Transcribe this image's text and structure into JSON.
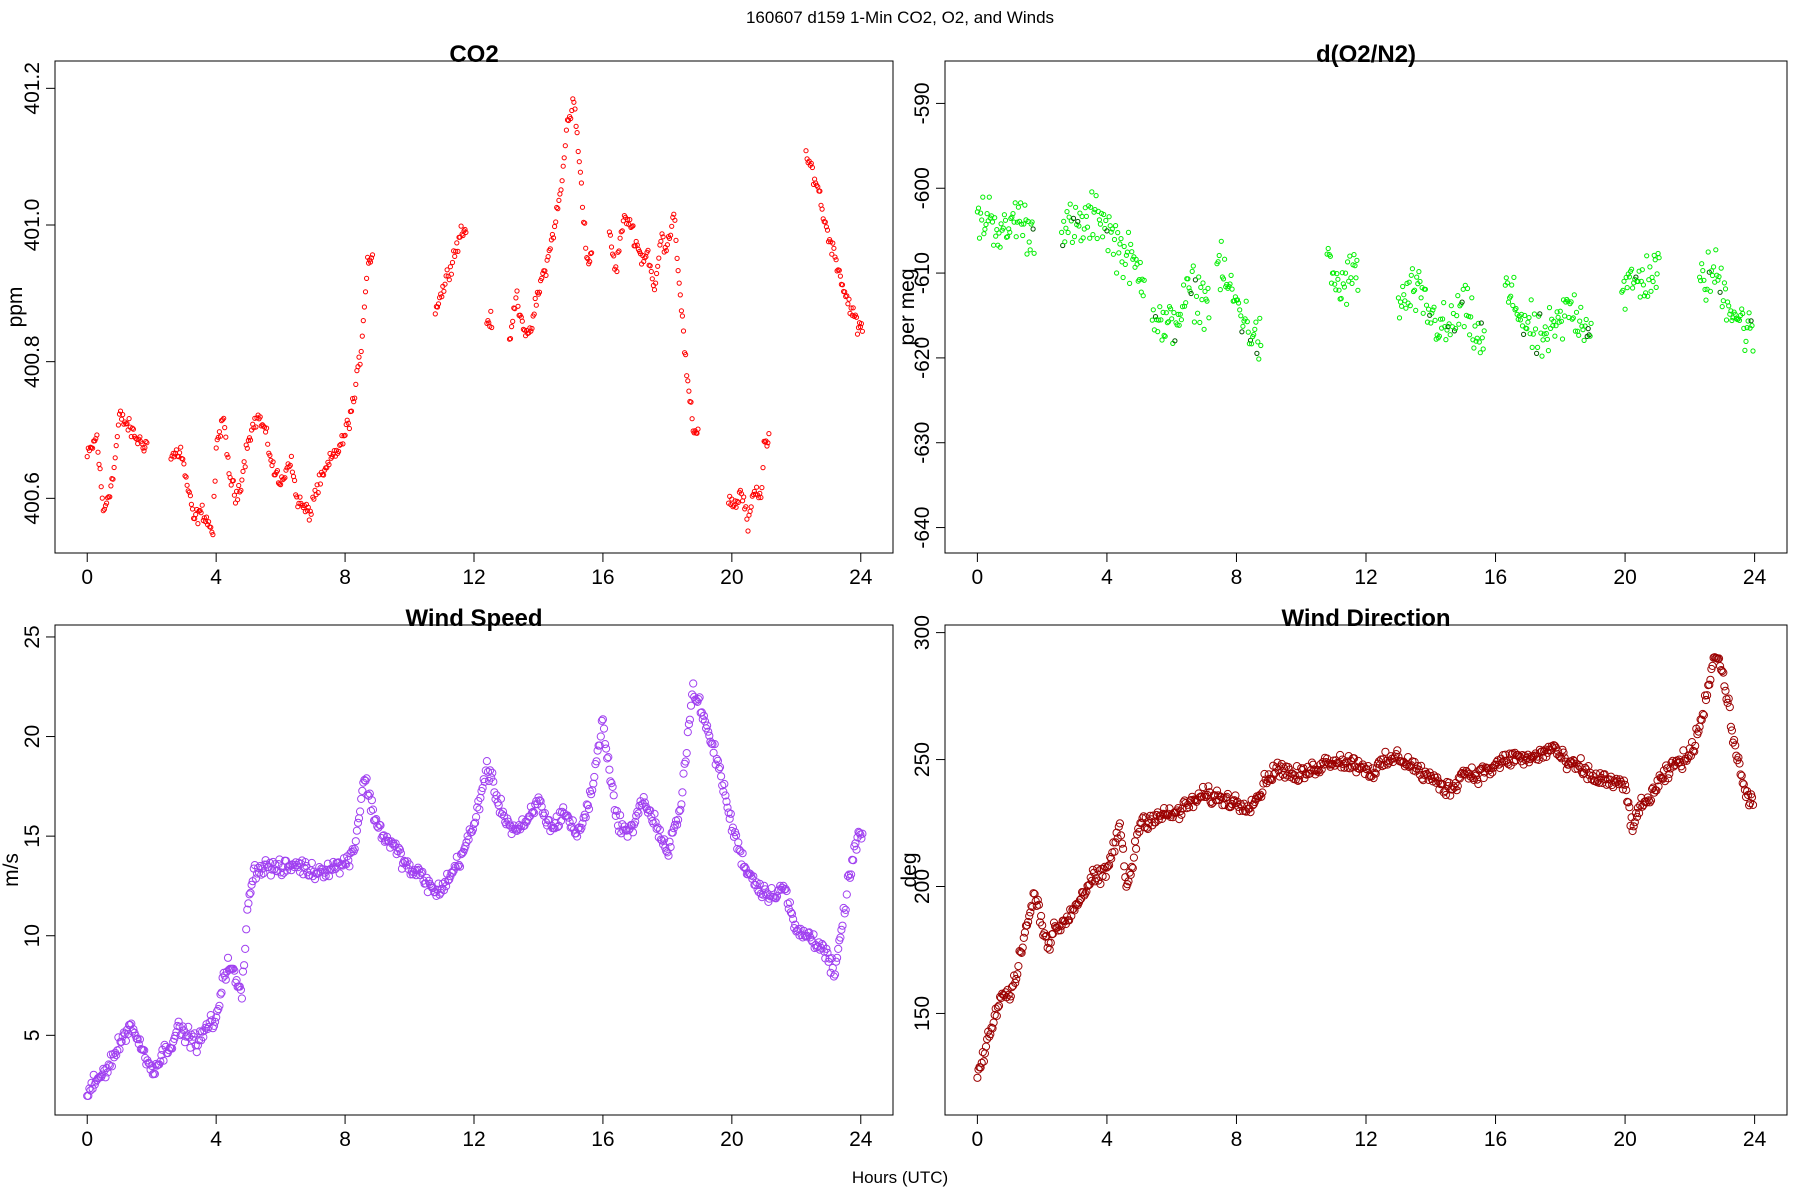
{
  "figure": {
    "suptitle": "160607   d159   1-Min CO2, O2, and Winds",
    "xlabel": "Hours (UTC)"
  },
  "chart_data": [
    {
      "id": "co2",
      "type": "scatter",
      "title": "CO2",
      "ylabel": "ppm",
      "xlabel": "",
      "xlim": [
        -1,
        25
      ],
      "ylim": [
        400.52,
        401.24
      ],
      "xticks": [
        0,
        4,
        8,
        12,
        16,
        20,
        24
      ],
      "yticks": [
        400.6,
        400.8,
        401.0,
        401.2
      ],
      "ytick_labels": [
        "400.6",
        "400.8",
        "401.0",
        "401.2"
      ],
      "color": "#ff0000",
      "marker_size": "small",
      "segments": [
        {
          "x": [
            0,
            0.3,
            0.5,
            0.8,
            1.0,
            1.2,
            1.5,
            1.7
          ],
          "y": [
            400.66,
            400.69,
            400.58,
            400.63,
            400.72,
            400.71,
            400.69,
            400.68
          ]
        },
        {
          "x": [
            2.6,
            2.9,
            3.1,
            3.3,
            3.6,
            3.9,
            4.0,
            4.2,
            4.4,
            4.6,
            4.8,
            5.0,
            5.3,
            5.5,
            5.8,
            6.0,
            6.3,
            6.5,
            6.8
          ],
          "y": [
            400.66,
            400.67,
            400.62,
            400.57,
            400.58,
            400.55,
            400.67,
            400.72,
            400.64,
            400.6,
            400.63,
            400.69,
            400.72,
            400.7,
            400.64,
            400.62,
            400.66,
            400.6,
            400.58
          ]
        },
        {
          "x": [
            7.0,
            7.3,
            7.6,
            7.9,
            8.1,
            8.3,
            8.5,
            8.7
          ],
          "y": [
            400.6,
            400.63,
            400.66,
            400.68,
            400.71,
            400.75,
            400.82,
            400.95
          ]
        },
        {
          "x": [
            10.8,
            11.0,
            11.2,
            11.4,
            11.6
          ],
          "y": [
            400.88,
            400.9,
            400.93,
            400.96,
            400.99
          ]
        },
        {
          "x": [
            12.4
          ],
          "y": [
            400.86
          ]
        },
        {
          "x": [
            13.1,
            13.3,
            13.5,
            13.7,
            13.9,
            14.1,
            14.3,
            14.5,
            14.7,
            14.9,
            15.1,
            15.3,
            15.5
          ],
          "y": [
            400.82,
            400.9,
            400.86,
            400.83,
            400.88,
            400.92,
            400.95,
            401.0,
            401.05,
            401.15,
            401.18,
            401.08,
            400.95
          ]
        },
        {
          "x": [
            16.2,
            16.4,
            16.6,
            16.8,
            17.0,
            17.2,
            17.4,
            17.6,
            17.8,
            18.0,
            18.2,
            18.4,
            18.6,
            18.8
          ],
          "y": [
            400.99,
            400.93,
            401.0,
            401.01,
            400.98,
            400.95,
            400.96,
            400.9,
            400.98,
            400.97,
            401.02,
            400.9,
            400.78,
            400.7
          ]
        },
        {
          "x": [
            19.9,
            20.1,
            20.3,
            20.5,
            20.7,
            20.9,
            21.0
          ],
          "y": [
            400.6,
            400.59,
            400.61,
            400.56,
            400.61,
            400.6,
            400.68
          ]
        },
        {
          "x": [
            22.3,
            22.5,
            22.7,
            22.9,
            23.1,
            23.3,
            23.5,
            23.7,
            23.9
          ],
          "y": [
            401.1,
            401.08,
            401.05,
            401.0,
            400.97,
            400.94,
            400.9,
            400.88,
            400.85
          ]
        }
      ]
    },
    {
      "id": "o2n2",
      "type": "scatter",
      "title": "d(O2/N2)",
      "ylabel": "per meg",
      "xlabel": "",
      "xlim": [
        -1,
        25
      ],
      "ylim": [
        -643,
        -585
      ],
      "xticks": [
        0,
        4,
        8,
        12,
        16,
        20,
        24
      ],
      "yticks": [
        -640,
        -630,
        -620,
        -610,
        -600,
        -590
      ],
      "ytick_labels": [
        "-640",
        "-630",
        "-620",
        "-610",
        "-600",
        "-590"
      ],
      "color": "#00ee00",
      "marker_size": "small",
      "segments": [
        {
          "x": [
            0,
            0.4,
            0.8,
            1.2,
            1.6
          ],
          "y": [
            -604,
            -603,
            -606,
            -603,
            -605
          ]
        },
        {
          "x": [
            2.6,
            3.0,
            3.4,
            3.8,
            4.2,
            4.6,
            5.0
          ],
          "y": [
            -604,
            -605,
            -604,
            -603,
            -606,
            -608,
            -610
          ]
        },
        {
          "x": [
            5.4,
            5.8,
            6.2,
            6.6,
            7.0
          ],
          "y": [
            -614,
            -617,
            -615,
            -612,
            -613
          ]
        },
        {
          "x": [
            7.4,
            7.8,
            8.2,
            8.6
          ],
          "y": [
            -609,
            -612,
            -615,
            -618
          ]
        },
        {
          "x": [
            10.8,
            11.2,
            11.6
          ],
          "y": [
            -609,
            -612,
            -610
          ]
        },
        {
          "x": [
            13.0,
            13.5,
            14.0,
            14.5,
            15.0,
            15.5
          ],
          "y": [
            -614,
            -612,
            -615,
            -617,
            -614,
            -618
          ]
        },
        {
          "x": [
            16.3,
            16.8,
            17.3,
            17.8,
            18.3,
            18.8
          ],
          "y": [
            -612,
            -615,
            -618,
            -617,
            -614,
            -616
          ]
        },
        {
          "x": [
            19.9,
            20.4,
            20.9
          ],
          "y": [
            -612,
            -611,
            -610
          ]
        },
        {
          "x": [
            22.3,
            22.8,
            23.3,
            23.8
          ],
          "y": [
            -611,
            -610,
            -614,
            -617
          ]
        }
      ]
    },
    {
      "id": "wspd",
      "type": "scatter",
      "title": "Wind Speed",
      "ylabel": "m/s",
      "xlabel": "",
      "xlim": [
        -1,
        25
      ],
      "ylim": [
        1,
        25.6
      ],
      "xticks": [
        0,
        4,
        8,
        12,
        16,
        20,
        24
      ],
      "yticks": [
        5,
        10,
        15,
        20,
        25
      ],
      "ytick_labels": [
        "5",
        "10",
        "15",
        "20",
        "25"
      ],
      "color": "#a040f0",
      "marker_size": "large",
      "series": {
        "x": [
          0,
          0.2,
          0.4,
          0.6,
          0.8,
          1.0,
          1.2,
          1.4,
          1.6,
          1.8,
          2.0,
          2.2,
          2.4,
          2.6,
          2.8,
          3.0,
          3.2,
          3.4,
          3.6,
          3.8,
          4.0,
          4.2,
          4.4,
          4.6,
          4.8,
          5.0,
          5.2,
          5.6,
          6.0,
          6.5,
          7.0,
          7.5,
          8.0,
          8.3,
          8.6,
          8.9,
          9.2,
          9.6,
          10.0,
          10.4,
          10.8,
          11.2,
          11.6,
          12.0,
          12.4,
          12.8,
          13.2,
          13.6,
          14.0,
          14.4,
          14.8,
          15.2,
          15.6,
          16.0,
          16.4,
          16.8,
          17.2,
          17.6,
          18.0,
          18.4,
          18.8,
          19.2,
          19.6,
          20.0,
          20.4,
          20.8,
          21.2,
          21.6,
          22.0,
          22.4,
          22.8,
          23.2,
          23.6,
          23.9
        ],
        "y": [
          2.0,
          2.5,
          2.9,
          3.4,
          3.9,
          4.5,
          5.2,
          5.5,
          4.6,
          4.0,
          3.3,
          3.6,
          4.2,
          4.6,
          5.3,
          5.1,
          4.9,
          4.6,
          5.0,
          5.7,
          5.5,
          7.9,
          8.6,
          7.8,
          7.0,
          12.0,
          13.3,
          13.5,
          13.3,
          13.6,
          13.2,
          13.4,
          13.6,
          14.5,
          18.0,
          16.0,
          15.0,
          14.3,
          13.3,
          13.0,
          12.1,
          12.8,
          14.0,
          15.5,
          18.5,
          16.5,
          15.3,
          15.5,
          16.8,
          15.3,
          16.3,
          15.0,
          16.8,
          20.8,
          16.0,
          15.0,
          16.8,
          15.8,
          14.0,
          16.5,
          22.5,
          20.5,
          18.5,
          15.5,
          13.5,
          12.5,
          12.0,
          12.5,
          10.2,
          10.0,
          9.5,
          8.0,
          12.5,
          15.0
        ]
      }
    },
    {
      "id": "wdir",
      "type": "scatter",
      "title": "Wind Direction",
      "ylabel": "deg",
      "xlabel": "",
      "xlim": [
        -1,
        25
      ],
      "ylim": [
        110,
        303
      ],
      "xticks": [
        0,
        4,
        8,
        12,
        16,
        20,
        24
      ],
      "yticks": [
        150,
        200,
        250,
        300
      ],
      "ytick_labels": [
        "150",
        "200",
        "250",
        "300"
      ],
      "color": "#9b0000",
      "marker_size": "large",
      "series": {
        "x": [
          0,
          0.2,
          0.4,
          0.6,
          0.8,
          1.0,
          1.2,
          1.4,
          1.6,
          1.8,
          2.0,
          2.2,
          2.4,
          2.6,
          2.8,
          3.0,
          3.2,
          3.4,
          3.6,
          3.8,
          4.0,
          4.2,
          4.4,
          4.6,
          4.8,
          5.0,
          5.4,
          5.8,
          6.2,
          6.6,
          7.0,
          7.4,
          7.8,
          8.2,
          8.6,
          9.0,
          9.4,
          9.8,
          10.2,
          10.6,
          11.0,
          11.4,
          11.8,
          12.2,
          12.6,
          13.0,
          13.4,
          13.8,
          14.2,
          14.6,
          15.0,
          15.4,
          15.8,
          16.2,
          16.6,
          17.0,
          17.4,
          17.8,
          18.2,
          18.6,
          19.0,
          19.4,
          19.8,
          20.0,
          20.2,
          20.4,
          20.8,
          21.2,
          21.6,
          22.0,
          22.4,
          22.6,
          22.8,
          23.0,
          23.2,
          23.4,
          23.6,
          23.8
        ],
        "y": [
          125,
          133,
          142,
          152,
          158,
          156,
          166,
          178,
          188,
          198,
          185,
          177,
          183,
          185,
          188,
          192,
          196,
          200,
          204,
          203,
          206,
          215,
          224,
          200,
          209,
          225,
          227,
          228,
          229,
          233,
          236,
          235,
          234,
          232,
          234,
          244,
          247,
          243,
          245,
          248,
          250,
          249,
          248,
          245,
          249,
          251,
          248,
          244,
          241,
          238,
          245,
          244,
          246,
          249,
          251,
          250,
          252,
          255,
          248,
          247,
          243,
          242,
          240,
          240,
          224,
          229,
          236,
          243,
          249,
          251,
          268,
          282,
          292,
          285,
          270,
          255,
          242,
          235
        ]
      }
    }
  ]
}
